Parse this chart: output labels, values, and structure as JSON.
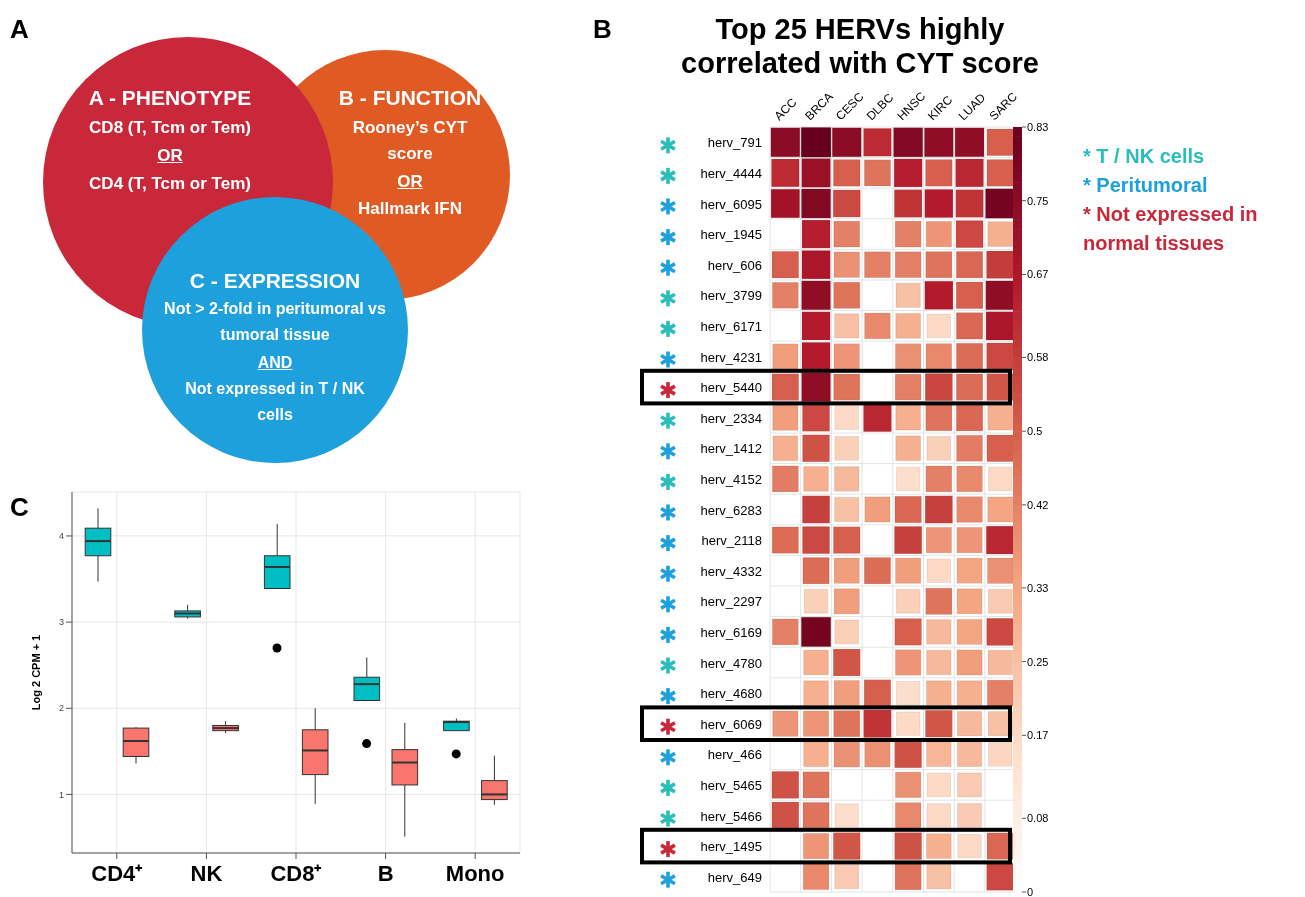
{
  "chart_data": [
    {
      "type": "other",
      "annotations": [
        "A",
        "A - PHENOTYPE",
        "CD8 (T, Tcm or Tem)",
        "OR",
        "CD4 (T, Tcm or Tem)",
        "B - FUNCTION",
        "Rooney’s CYT score",
        "OR",
        "Hallmark IFN",
        "C - EXPRESSION",
        "Not > 2-fold in peritumoral vs tumoral tissue",
        "AND",
        "Not expressed in T / NK cells"
      ]
    },
    {
      "type": "heatmap",
      "title": "Top 25 HERVs highly correlated with CYT score",
      "annotations": [
        "B",
        "* T / NK cells",
        "* Peritumoral",
        "* Not expressed in normal tissues"
      ],
      "categories": [
        "ACC",
        "BRCA",
        "CESC",
        "DLBC",
        "HNSC",
        "KIRC",
        "LUAD",
        "SARC"
      ],
      "y_categories": [
        "herv_791",
        "herv_4444",
        "herv_6095",
        "herv_1945",
        "herv_606",
        "herv_3799",
        "herv_6171",
        "herv_4231",
        "herv_5440",
        "herv_2334",
        "herv_1412",
        "herv_4152",
        "herv_6283",
        "herv_2118",
        "herv_4332",
        "herv_2297",
        "herv_6169",
        "herv_4780",
        "herv_4680",
        "herv_6069",
        "herv_466",
        "herv_5465",
        "herv_5466",
        "herv_1495",
        "herv_649"
      ],
      "cells": [
        [
          0.75,
          0.83,
          0.75,
          0.62,
          0.77,
          0.74,
          0.74,
          0.5
        ],
        [
          0.62,
          0.72,
          0.5,
          0.45,
          0.65,
          0.5,
          0.63,
          0.5
        ],
        [
          0.7,
          0.77,
          0.55,
          null,
          0.6,
          0.66,
          0.6,
          0.8
        ],
        [
          null,
          0.65,
          0.42,
          null,
          0.42,
          0.37,
          0.55,
          0.3
        ],
        [
          0.5,
          0.68,
          0.38,
          0.42,
          0.42,
          0.45,
          0.48,
          0.58
        ],
        [
          0.42,
          0.74,
          0.45,
          null,
          0.25,
          0.66,
          0.5,
          0.74
        ],
        [
          null,
          0.66,
          0.25,
          0.4,
          0.3,
          0.17,
          0.48,
          0.68
        ],
        [
          0.35,
          0.66,
          0.37,
          null,
          0.38,
          0.4,
          0.47,
          0.55
        ],
        [
          0.5,
          0.74,
          0.45,
          null,
          0.42,
          0.56,
          0.47,
          0.52
        ],
        [
          0.35,
          0.55,
          0.17,
          0.63,
          0.3,
          0.45,
          0.48,
          0.3
        ],
        [
          0.3,
          0.53,
          0.2,
          null,
          0.3,
          0.2,
          0.43,
          0.5
        ],
        [
          0.43,
          0.3,
          0.27,
          null,
          0.15,
          0.42,
          0.4,
          0.17
        ],
        [
          null,
          0.57,
          0.25,
          0.35,
          0.48,
          0.57,
          0.4,
          0.33
        ],
        [
          0.47,
          0.55,
          0.5,
          null,
          0.57,
          0.37,
          0.37,
          0.63
        ],
        [
          null,
          0.47,
          0.35,
          0.47,
          0.35,
          0.17,
          0.33,
          0.38
        ],
        [
          null,
          0.2,
          0.35,
          null,
          0.2,
          0.45,
          0.33,
          0.22
        ],
        [
          0.42,
          0.8,
          0.2,
          null,
          0.5,
          0.27,
          0.33,
          0.55
        ],
        [
          null,
          0.3,
          0.52,
          null,
          0.37,
          0.27,
          0.35,
          0.27
        ],
        [
          null,
          0.3,
          0.35,
          0.5,
          0.15,
          0.3,
          0.3,
          0.42
        ],
        [
          0.37,
          0.37,
          0.45,
          0.6,
          0.17,
          0.52,
          0.27,
          0.25
        ],
        [
          null,
          0.3,
          0.38,
          0.38,
          0.53,
          0.28,
          0.27,
          0.18
        ],
        [
          0.53,
          0.45,
          null,
          null,
          0.38,
          0.17,
          0.22,
          null
        ],
        [
          0.53,
          0.45,
          0.15,
          null,
          0.4,
          0.17,
          0.22,
          null
        ],
        [
          null,
          0.37,
          0.52,
          null,
          0.53,
          0.3,
          0.17,
          0.48
        ],
        [
          null,
          0.4,
          0.22,
          null,
          0.45,
          0.25,
          null,
          0.55
        ]
      ],
      "clim": [
        0,
        0.83
      ],
      "cticks": [
        0,
        0.08,
        0.17,
        0.25,
        0.33,
        0.42,
        0.5,
        0.58,
        0.67,
        0.75,
        0.83
      ]
    },
    {
      "type": "box",
      "annotations": [
        "C"
      ],
      "categories": [
        "CD4⁺",
        "NK",
        "CD8⁺",
        "B",
        "Mono"
      ],
      "ylabel": "Log 2 CPM + 1",
      "ylim": [
        0.32,
        4.51
      ],
      "yticks": [
        1,
        2,
        3,
        4
      ],
      "grid": true,
      "series": [
        {
          "color": "#00bfc4",
          "boxes": [
            {
              "low": 3.47,
              "q1": 3.77,
              "median": 3.94,
              "q3": 4.09,
              "high": 4.32
            },
            {
              "low": 3.04,
              "q1": 3.06,
              "median": 3.1,
              "q3": 3.13,
              "high": 3.2
            },
            {
              "low": 3.39,
              "q1": 3.39,
              "median": 3.64,
              "q3": 3.77,
              "high": 4.14,
              "outliers": [
                2.7
              ]
            },
            {
              "low": 2.09,
              "q1": 2.09,
              "median": 2.28,
              "q3": 2.36,
              "high": 2.59,
              "outliers": [
                1.59
              ]
            },
            {
              "low": 1.74,
              "q1": 1.74,
              "median": 1.84,
              "q3": 1.85,
              "high": 1.88,
              "outliers": [
                1.47
              ]
            }
          ]
        },
        {
          "color": "#f8766d",
          "boxes": [
            {
              "low": 1.36,
              "q1": 1.44,
              "median": 1.62,
              "q3": 1.77,
              "high": 1.78
            },
            {
              "low": 1.71,
              "q1": 1.74,
              "median": 1.77,
              "q3": 1.8,
              "high": 1.85
            },
            {
              "low": 0.89,
              "q1": 1.23,
              "median": 1.51,
              "q3": 1.75,
              "high": 2.0
            },
            {
              "low": 0.51,
              "q1": 1.11,
              "median": 1.37,
              "q3": 1.52,
              "high": 1.83
            },
            {
              "low": 0.88,
              "q1": 0.94,
              "median": 1.0,
              "q3": 1.16,
              "high": 1.45
            }
          ]
        }
      ]
    }
  ]
}
